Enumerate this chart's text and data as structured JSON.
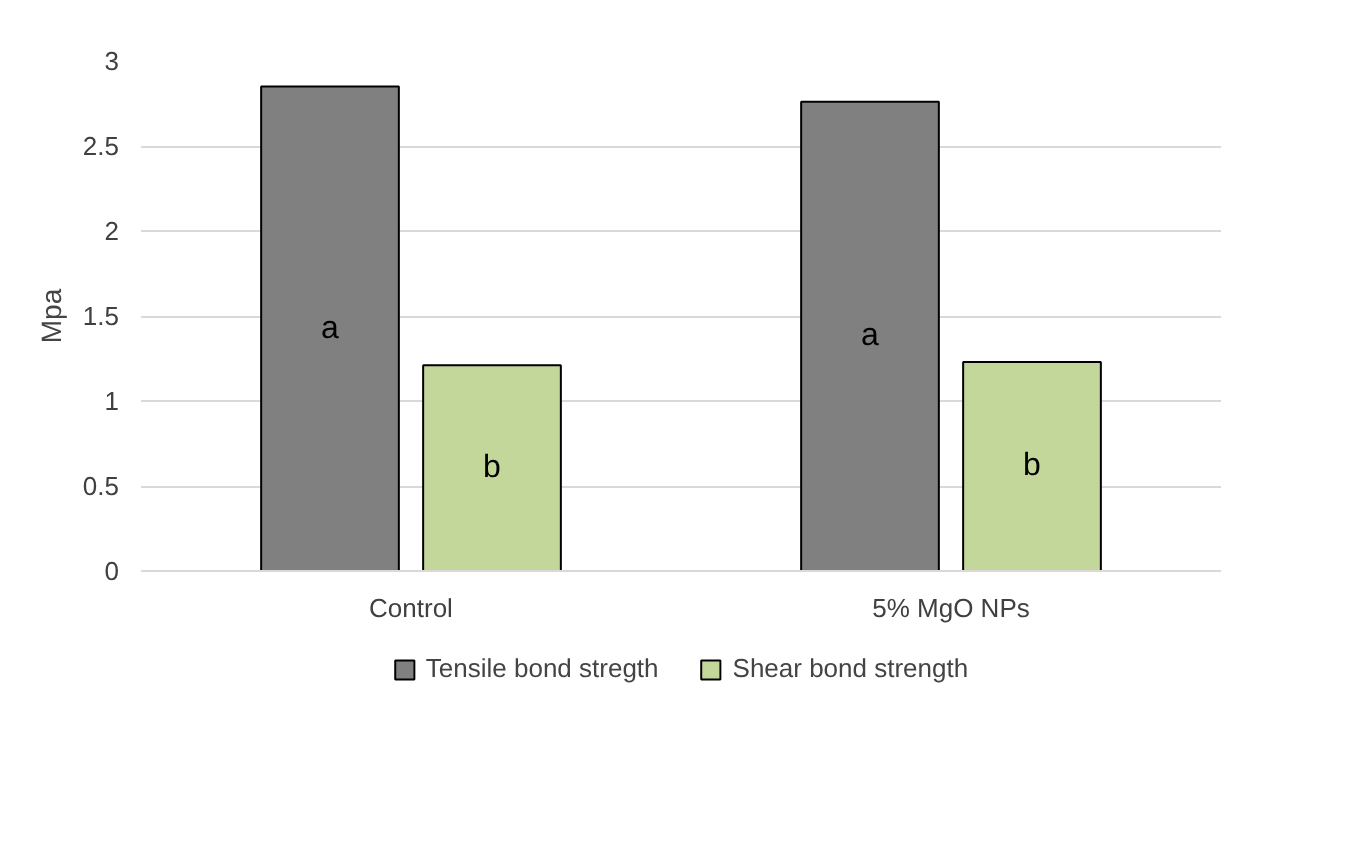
{
  "chart_data": {
    "type": "bar",
    "ylabel": "Mpa",
    "categories": [
      "Control",
      "5% MgO NPs"
    ],
    "series": [
      {
        "name": "Tensile bond stregth",
        "color": "#808080",
        "values": [
          2.85,
          2.76
        ]
      },
      {
        "name": "Shear bond strength",
        "color": "#c4d79b",
        "values": [
          1.21,
          1.23
        ]
      }
    ],
    "ylim": [
      0,
      3
    ],
    "yticks": [
      0,
      0.5,
      1,
      1.5,
      2,
      2.5,
      3
    ],
    "grid": "y",
    "legend": "bottom",
    "annotations": [
      "a",
      "b",
      "a",
      "b"
    ]
  }
}
